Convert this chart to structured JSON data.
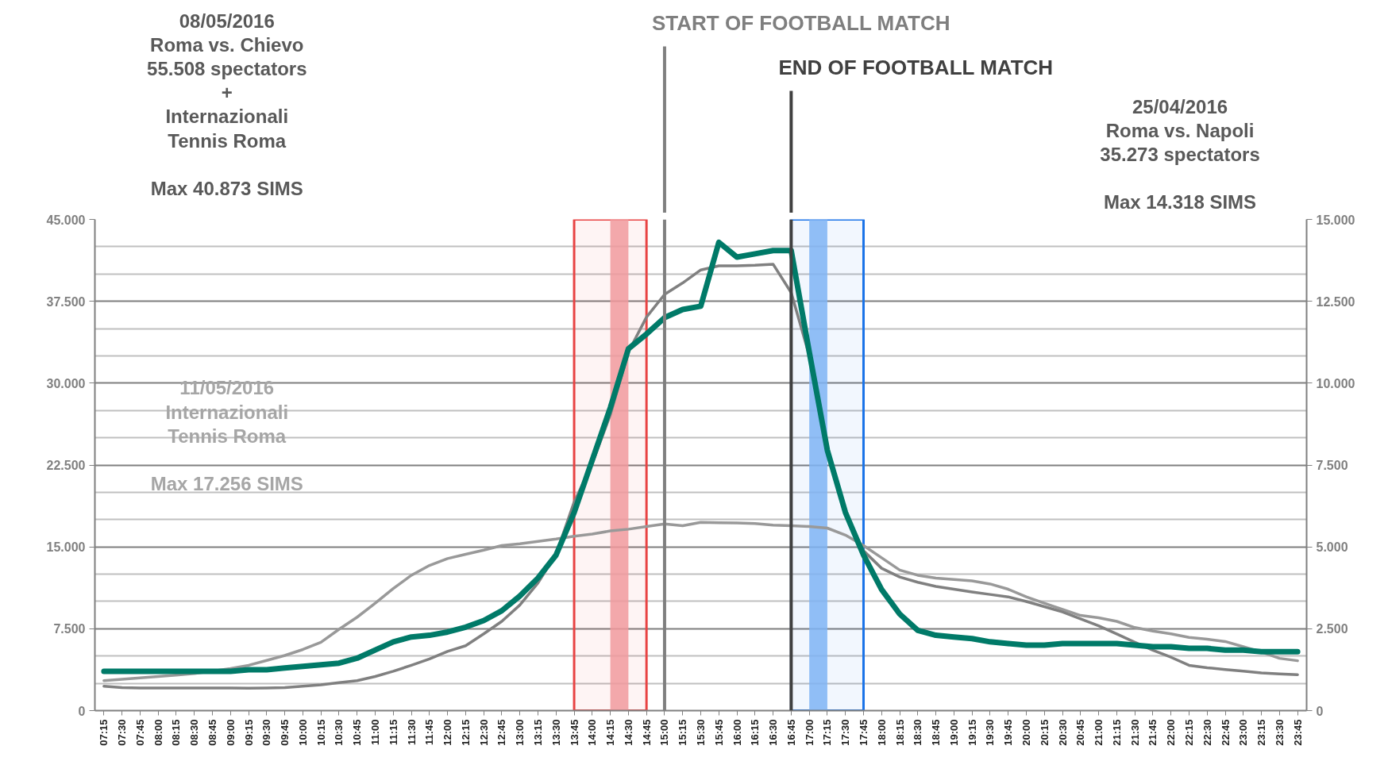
{
  "chart_data": {
    "type": "line",
    "categories": [
      "07:15",
      "07:30",
      "07:45",
      "08:00",
      "08:15",
      "08:30",
      "08:45",
      "09:00",
      "09:15",
      "09:30",
      "09:45",
      "10:00",
      "10:15",
      "10:30",
      "10:45",
      "11:00",
      "11:15",
      "11:30",
      "11:45",
      "12:00",
      "12:15",
      "12:30",
      "12:45",
      "13:00",
      "13:15",
      "13:30",
      "13:45",
      "14:00",
      "14:15",
      "14:30",
      "14:45",
      "15:00",
      "15:15",
      "15:30",
      "15:45",
      "16:00",
      "16:15",
      "16:30",
      "16:45",
      "17:00",
      "17:15",
      "17:30",
      "17:45",
      "18:00",
      "18:15",
      "18:30",
      "18:45",
      "19:00",
      "19:15",
      "19:30",
      "19:45",
      "20:00",
      "20:15",
      "20:30",
      "20:45",
      "21:00",
      "21:15",
      "21:30",
      "21:45",
      "22:00",
      "22:15",
      "22:30",
      "22:45",
      "23:00",
      "23:15",
      "23:30",
      "23:45"
    ],
    "series": [
      {
        "color": "#999999",
        "values": [
          2750,
          2880,
          3000,
          3130,
          3250,
          3400,
          3610,
          3850,
          4150,
          4600,
          5050,
          5600,
          6260,
          7450,
          8560,
          9840,
          11190,
          12400,
          13300,
          13930,
          14320,
          14700,
          15120,
          15280,
          15500,
          15720,
          15980,
          16170,
          16460,
          16620,
          16870,
          17100,
          16940,
          17250,
          17220,
          17190,
          17130,
          17000,
          16940,
          16870,
          16720,
          16080,
          15120,
          14000,
          12880,
          12400,
          12140,
          12020,
          11890,
          11600,
          11120,
          10420,
          9840,
          9270,
          8720,
          8500,
          8180,
          7610,
          7290,
          7030,
          6710,
          6550,
          6330,
          5850,
          5370,
          4790,
          4570
        ]
      },
      {
        "color": "#808080",
        "values": [
          2240,
          2110,
          2080,
          2080,
          2080,
          2080,
          2080,
          2080,
          2050,
          2080,
          2110,
          2240,
          2370,
          2560,
          2750,
          3130,
          3610,
          4150,
          4730,
          5430,
          5940,
          7030,
          8180,
          9680,
          11700,
          14320,
          19110,
          22630,
          27100,
          32860,
          36050,
          38130,
          39180,
          40370,
          40750,
          40750,
          40800,
          40900,
          38290,
          32540,
          23910,
          18150,
          14640,
          13040,
          12240,
          11760,
          11380,
          11120,
          10870,
          10640,
          10420,
          10000,
          9520,
          9040,
          8410,
          7770,
          7030,
          6260,
          5530,
          4890,
          4150,
          3930,
          3770,
          3610,
          3450,
          3360,
          3290
        ]
      },
      {
        "color": "#007a68",
        "axis": "y2",
        "values": [
          1200,
          1200,
          1200,
          1200,
          1200,
          1200,
          1200,
          1200,
          1250,
          1250,
          1300,
          1350,
          1400,
          1450,
          1600,
          1850,
          2100,
          2250,
          2300,
          2400,
          2550,
          2750,
          3050,
          3500,
          4050,
          4750,
          6050,
          7650,
          9250,
          11050,
          11500,
          12000,
          12250,
          12350,
          14300,
          13850,
          13950,
          14050,
          14050,
          10950,
          7950,
          6050,
          4750,
          3700,
          2950,
          2450,
          2300,
          2250,
          2200,
          2100,
          2050,
          2000,
          2000,
          2050,
          2050,
          2050,
          2050,
          2000,
          1950,
          1950,
          1900,
          1900,
          1850,
          1850,
          1800,
          1800,
          1800
        ]
      }
    ],
    "ylim": [
      0,
      45000
    ],
    "yticks": [
      {
        "value": 0,
        "label": "0"
      },
      {
        "value": 7500,
        "label": "7.500"
      },
      {
        "value": 15000,
        "label": "15.000"
      },
      {
        "value": 22500,
        "label": "22.500"
      },
      {
        "value": 30000,
        "label": "30.000"
      },
      {
        "value": 37500,
        "label": "37.500"
      },
      {
        "value": 45000,
        "label": "45.000"
      }
    ],
    "y2lim": [
      0,
      15000
    ],
    "y2ticks": [
      {
        "value": 0,
        "label": "0"
      },
      {
        "value": 2500,
        "label": "2.500"
      },
      {
        "value": 5000,
        "label": "5.000"
      },
      {
        "value": 7500,
        "label": "7.500"
      },
      {
        "value": 10000,
        "label": "10.000"
      },
      {
        "value": 12500,
        "label": "12.500"
      },
      {
        "value": 15000,
        "label": "15.000"
      }
    ],
    "grid": "y",
    "ref_lines": [
      {
        "axis": "x",
        "value": "15:00",
        "label": "START OF FOOTBALL MATCH",
        "color": "#7f7f7f"
      },
      {
        "axis": "x",
        "value": "16:45",
        "label": "END OF FOOTBALL MATCH",
        "color": "#404040"
      }
    ],
    "bands": [
      {
        "axis": "x",
        "from": "13:45",
        "to": "14:45",
        "color": "#e84343"
      },
      {
        "axis": "x",
        "from": "14:15",
        "to": "14:30",
        "color": "#f19a9e"
      },
      {
        "axis": "x",
        "from": "16:45",
        "to": "17:45",
        "color": "#1a73e8"
      },
      {
        "axis": "x",
        "from": "17:00",
        "to": "17:15",
        "color": "#7fb4f5"
      }
    ],
    "annotations": [
      "08/05/2016\nRoma vs. Chievo\n55.508 spectators\n+\nInternazionali\nTennis Roma\n\nMax 40.873 SIMS",
      "11/05/2016\nInternazionali\nTennis Roma\n\nMax 17.256 SIMS",
      "25/04/2016\nRoma vs. Napoli\n35.273 spectators\n\nMax 14.318 SIMS"
    ]
  }
}
